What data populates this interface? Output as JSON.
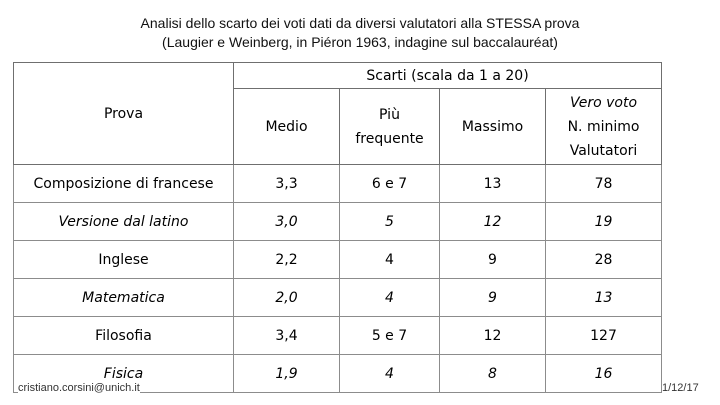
{
  "title": {
    "line1": "Analisi dello scarto dei voti dati da diversi valutatori alla STESSA prova",
    "line2": "(Laugier e Weinberg, in Piéron 1963, indagine sul baccalauréat)"
  },
  "table": {
    "group_header": "Scarti (scala da 1 a 20)",
    "prova_header": "Prova",
    "columns": {
      "medio": "Medio",
      "piu_frequente_1": "Più",
      "piu_frequente_2": "frequente",
      "massimo": "Massimo",
      "vero_voto_1": "Vero voto",
      "vero_voto_2": "N. minimo",
      "vero_voto_3": "Valutatori"
    },
    "rows": [
      {
        "prova": "Composizione di francese",
        "medio": "3,3",
        "frequente": "6 e 7",
        "massimo": "13",
        "valutatori": "78"
      },
      {
        "prova": "Versione dal latino",
        "medio": "3,0",
        "frequente": "5",
        "massimo": "12",
        "valutatori": "19"
      },
      {
        "prova": "Inglese",
        "medio": "2,2",
        "frequente": "4",
        "massimo": "9",
        "valutatori": "28"
      },
      {
        "prova": "Matematica",
        "medio": "2,0",
        "frequente": "4",
        "massimo": "9",
        "valutatori": "13"
      },
      {
        "prova": "Filosofia",
        "medio": "3,4",
        "frequente": "5 e 7",
        "massimo": "12",
        "valutatori": "127"
      },
      {
        "prova": "Fisica",
        "medio": "1,9",
        "frequente": "4",
        "massimo": "8",
        "valutatori": "16"
      }
    ]
  },
  "footer": {
    "author": "cristiano.corsini@unich.it",
    "date": "1/12/17"
  }
}
